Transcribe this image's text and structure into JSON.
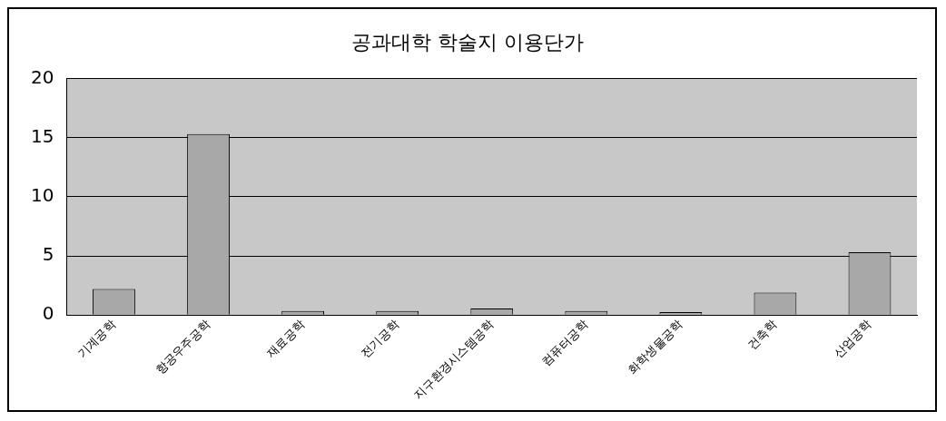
{
  "chart_data": {
    "type": "bar",
    "title": "공과대학 학술지 이용단가",
    "categories": [
      "기계공학",
      "항공우주공학",
      "재료공학",
      "전기공학",
      "지구환경시스템공학",
      "컴퓨터공학",
      "화학생물공학",
      "건축학",
      "산업공학"
    ],
    "values": [
      2.2,
      15.3,
      0.35,
      0.35,
      0.55,
      0.35,
      0.25,
      1.9,
      5.3
    ],
    "color": "#a8a8a8",
    "ylim": [
      0,
      20
    ],
    "yticks": [
      0,
      5,
      10,
      15,
      20
    ],
    "grid": "y",
    "legend": false
  }
}
